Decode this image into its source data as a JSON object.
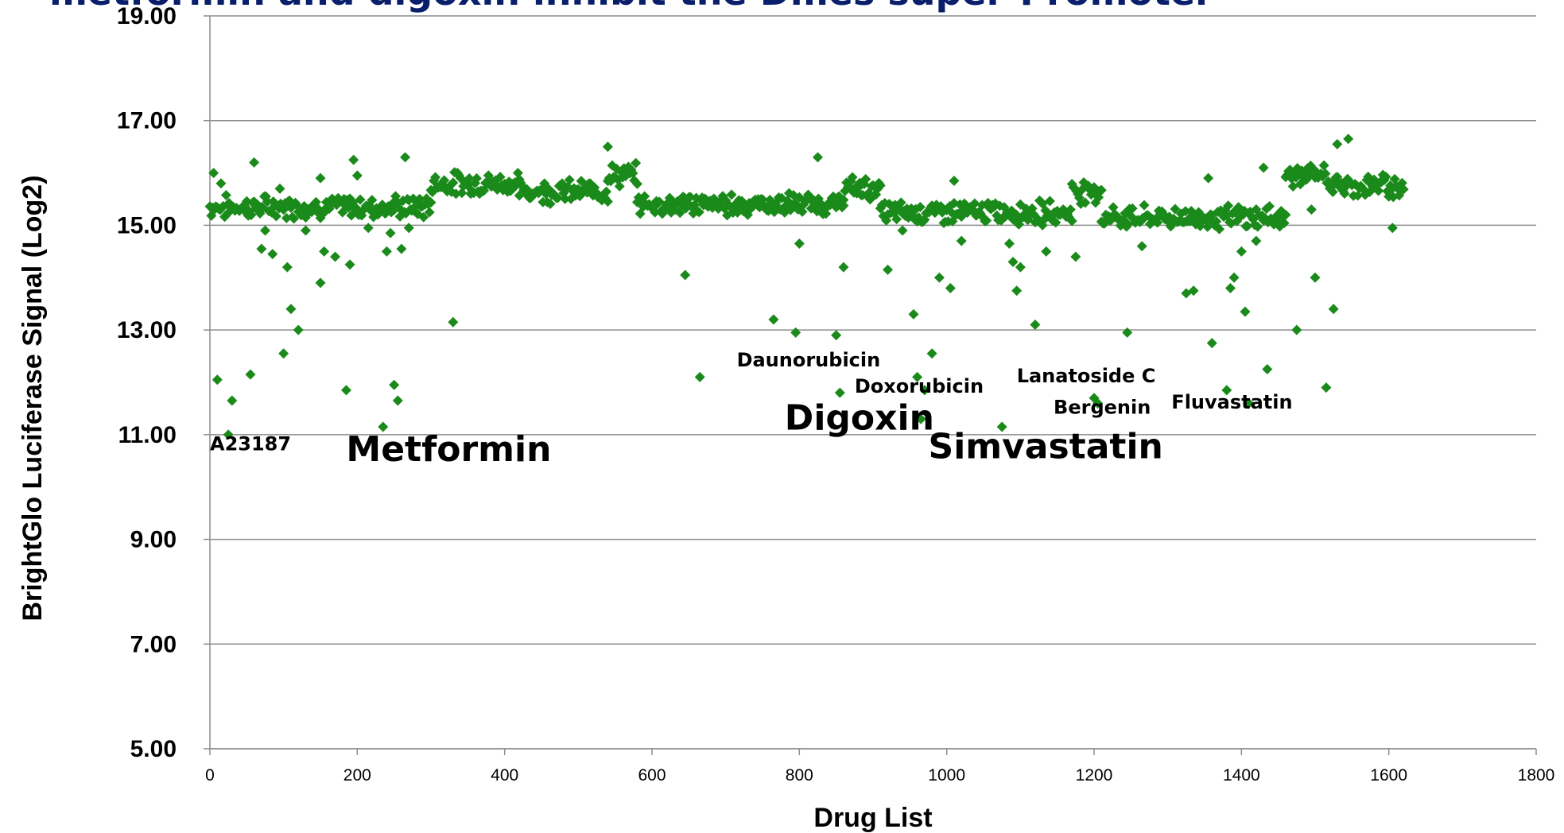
{
  "chart_data": {
    "type": "scatter",
    "title": "metformin and digoxin inhibit the Dmes super-Promoter",
    "xlabel": "Drug List",
    "ylabel": "BrightGlo Luciferase Signal (Log2)",
    "xlim": [
      0,
      1800
    ],
    "ylim": [
      5,
      19
    ],
    "x_ticks": [
      0,
      200,
      400,
      600,
      800,
      1000,
      1200,
      1400,
      1600,
      1800
    ],
    "y_ticks": [
      "19.00",
      "17.00",
      "15.00",
      "13.00",
      "11.00",
      "9.00",
      "7.00",
      "5.00"
    ],
    "grid": "horizontal",
    "marker": "diamond",
    "color": "#1a8a1a",
    "series": [
      {
        "band_segments": [
          [
            0,
            300,
            15.35
          ],
          [
            300,
            420,
            15.8
          ],
          [
            420,
            540,
            15.65
          ],
          [
            540,
            580,
            15.95
          ],
          [
            580,
            860,
            15.4
          ],
          [
            860,
            910,
            15.7
          ],
          [
            910,
            1170,
            15.25
          ],
          [
            1170,
            1210,
            15.65
          ],
          [
            1210,
            1460,
            15.15
          ],
          [
            1460,
            1520,
            15.95
          ],
          [
            1520,
            1620,
            15.75
          ]
        ],
        "outliers": [
          [
            5,
            16.0
          ],
          [
            10,
            12.05
          ],
          [
            15,
            15.8
          ],
          [
            25,
            11.0
          ],
          [
            30,
            11.65
          ],
          [
            55,
            12.15
          ],
          [
            60,
            16.2
          ],
          [
            70,
            14.55
          ],
          [
            75,
            14.9
          ],
          [
            85,
            14.45
          ],
          [
            95,
            15.7
          ],
          [
            100,
            12.55
          ],
          [
            105,
            14.2
          ],
          [
            110,
            13.4
          ],
          [
            120,
            13.0
          ],
          [
            130,
            14.9
          ],
          [
            150,
            13.9
          ],
          [
            150,
            15.9
          ],
          [
            155,
            14.5
          ],
          [
            170,
            14.4
          ],
          [
            185,
            11.85
          ],
          [
            190,
            14.25
          ],
          [
            195,
            16.25
          ],
          [
            200,
            15.95
          ],
          [
            215,
            14.95
          ],
          [
            235,
            11.15
          ],
          [
            240,
            14.5
          ],
          [
            245,
            14.85
          ],
          [
            250,
            11.95
          ],
          [
            255,
            11.65
          ],
          [
            260,
            14.55
          ],
          [
            265,
            16.3
          ],
          [
            270,
            14.95
          ],
          [
            285,
            15.5
          ],
          [
            330,
            13.15
          ],
          [
            540,
            16.5
          ],
          [
            645,
            14.05
          ],
          [
            665,
            12.1
          ],
          [
            765,
            13.2
          ],
          [
            795,
            12.95
          ],
          [
            800,
            14.65
          ],
          [
            825,
            16.3
          ],
          [
            850,
            12.9
          ],
          [
            855,
            11.8
          ],
          [
            860,
            14.2
          ],
          [
            920,
            14.15
          ],
          [
            940,
            14.9
          ],
          [
            955,
            13.3
          ],
          [
            960,
            12.1
          ],
          [
            965,
            11.3
          ],
          [
            970,
            11.85
          ],
          [
            980,
            12.55
          ],
          [
            990,
            14.0
          ],
          [
            1005,
            13.8
          ],
          [
            1010,
            15.85
          ],
          [
            1020,
            14.7
          ],
          [
            1075,
            11.15
          ],
          [
            1085,
            14.65
          ],
          [
            1090,
            14.3
          ],
          [
            1095,
            13.75
          ],
          [
            1100,
            14.2
          ],
          [
            1120,
            13.1
          ],
          [
            1130,
            15.0
          ],
          [
            1135,
            14.5
          ],
          [
            1175,
            14.4
          ],
          [
            1200,
            11.7
          ],
          [
            1205,
            11.6
          ],
          [
            1245,
            12.95
          ],
          [
            1265,
            14.6
          ],
          [
            1325,
            13.7
          ],
          [
            1335,
            13.75
          ],
          [
            1355,
            15.9
          ],
          [
            1360,
            12.75
          ],
          [
            1380,
            11.85
          ],
          [
            1385,
            13.8
          ],
          [
            1390,
            14.0
          ],
          [
            1400,
            14.5
          ],
          [
            1405,
            13.35
          ],
          [
            1410,
            11.6
          ],
          [
            1420,
            14.7
          ],
          [
            1430,
            16.1
          ],
          [
            1435,
            12.25
          ],
          [
            1475,
            13.0
          ],
          [
            1495,
            15.3
          ],
          [
            1500,
            14.0
          ],
          [
            1515,
            11.9
          ],
          [
            1525,
            13.4
          ],
          [
            1530,
            16.55
          ],
          [
            1545,
            16.65
          ],
          [
            1605,
            14.95
          ]
        ]
      }
    ],
    "annotations": [
      {
        "text": "A23187",
        "x": 0,
        "y": 10.7,
        "size": "small"
      },
      {
        "text": "Metformin",
        "x": 185,
        "y": 10.5,
        "size": "large"
      },
      {
        "text": "Daunorubicin",
        "x": 715,
        "y": 12.3,
        "size": "small"
      },
      {
        "text": "Doxorubicin",
        "x": 875,
        "y": 11.8,
        "size": "small"
      },
      {
        "text": "Digoxin",
        "x": 780,
        "y": 11.1,
        "size": "large"
      },
      {
        "text": "Simvastatin",
        "x": 975,
        "y": 10.55,
        "size": "large"
      },
      {
        "text": "Lanatoside C",
        "x": 1095,
        "y": 12.0,
        "size": "small"
      },
      {
        "text": "Bergenin",
        "x": 1145,
        "y": 11.4,
        "size": "small"
      },
      {
        "text": "Fluvastatin",
        "x": 1305,
        "y": 11.5,
        "size": "small"
      }
    ]
  }
}
